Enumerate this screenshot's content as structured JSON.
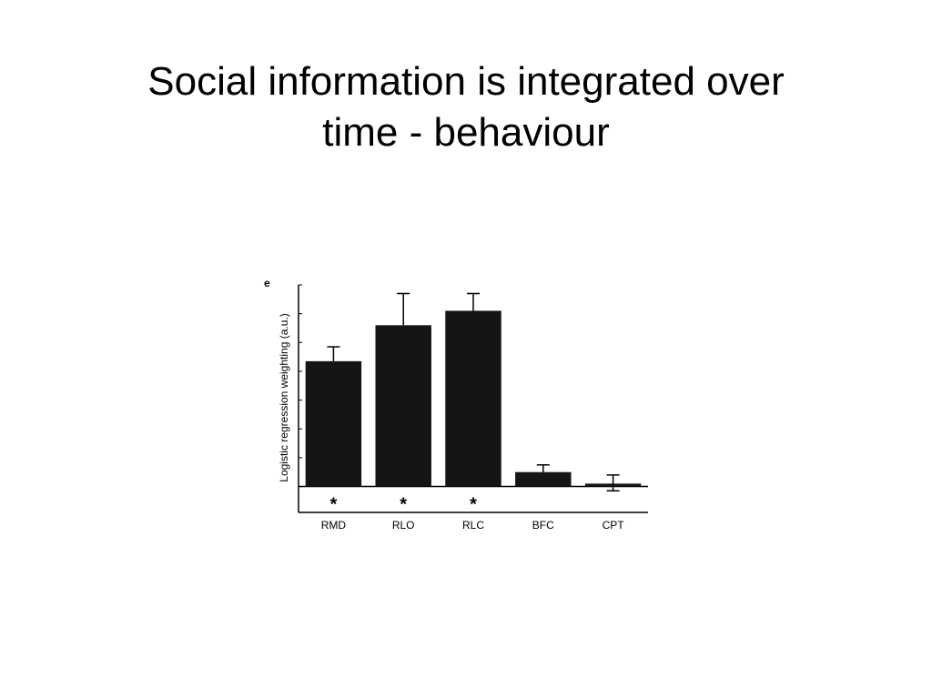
{
  "slide": {
    "title_line1": "Social information is integrated over",
    "title_line2": "time - behaviour"
  },
  "chart_data": {
    "type": "bar",
    "panel_label": "e",
    "title": "",
    "xlabel": "",
    "ylabel": "Logistic regression weighting (a.u.)",
    "categories": [
      "RMD",
      "RLO",
      "RLC",
      "BFC",
      "CPT"
    ],
    "values": [
      4.35,
      5.6,
      6.1,
      0.5,
      0.1
    ],
    "error_upper": [
      0.5,
      1.1,
      0.6,
      0.25,
      0.3
    ],
    "error_lower": [
      0,
      0,
      0,
      0,
      0.25
    ],
    "significance": [
      "*",
      "*",
      "*",
      "",
      ""
    ],
    "ylim": [
      -0.9,
      7.0
    ],
    "y_ticks": [
      0,
      1,
      2,
      3,
      4,
      5,
      6,
      7
    ],
    "y_tick_labels_shown": false,
    "bar_color": "#151515",
    "grid": false
  }
}
